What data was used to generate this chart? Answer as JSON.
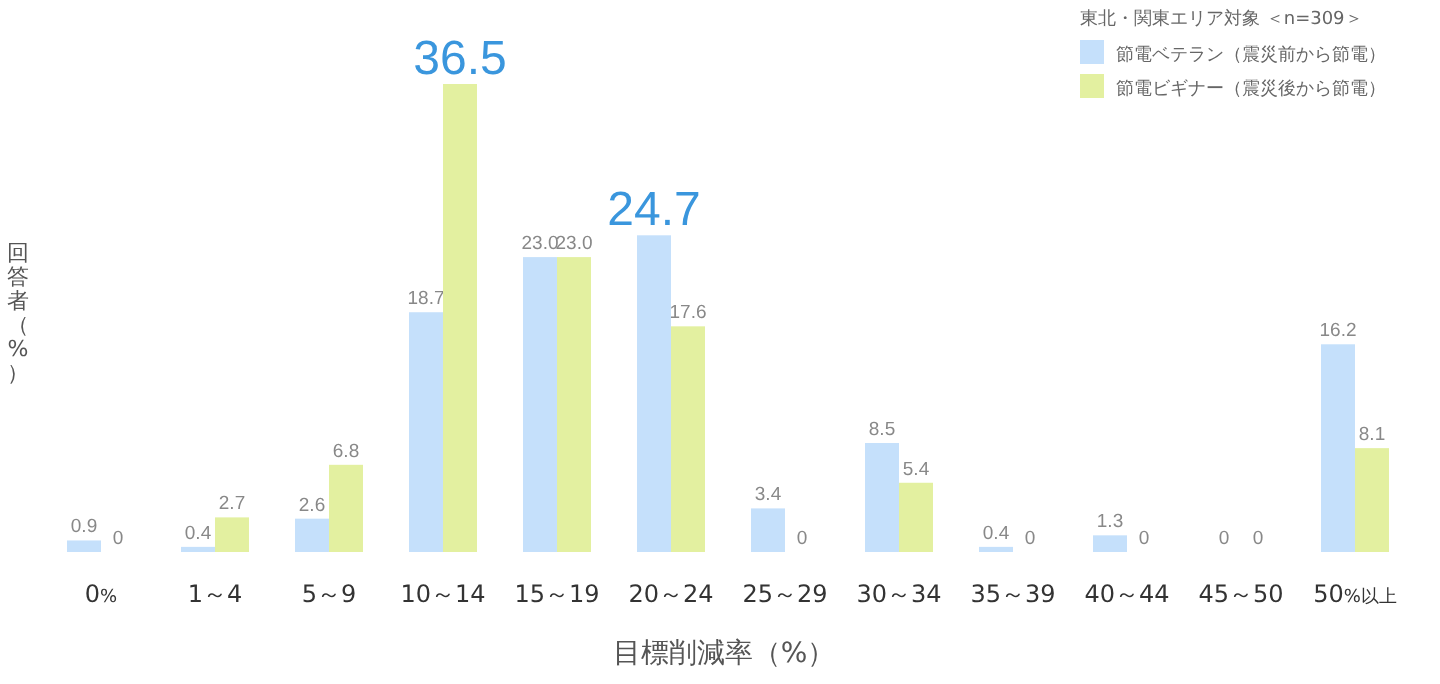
{
  "chart_data": {
    "type": "bar",
    "xlabel": "目標削減率（%）",
    "ylabel": "回答者（%）",
    "legend_title": "東北・関東エリア対象 ＜n=309＞",
    "legend": "top right",
    "categories": [
      "0%",
      "1～4",
      "5～9",
      "10～14",
      "15～19",
      "20～24",
      "25～29",
      "30～34",
      "35～39",
      "40～44",
      "45～50",
      "50%以上"
    ],
    "series": [
      {
        "name": "節電ベテラン（震災前から節電）",
        "color": "#c5e0fb",
        "values": [
          0.9,
          0.4,
          2.6,
          18.7,
          23.0,
          24.7,
          3.4,
          8.5,
          0.4,
          1.3,
          0,
          16.2
        ],
        "value_labels": [
          "0.9",
          "0.4",
          "2.6",
          "18.7",
          "23.0",
          "24.7",
          "3.4",
          "8.5",
          "0.4",
          "1.3",
          "0",
          "16.2"
        ]
      },
      {
        "name": "節電ビギナー（震災後から節電）",
        "color": "#e3f0a0",
        "values": [
          0,
          2.7,
          6.8,
          36.5,
          23.0,
          17.6,
          0,
          5.4,
          0,
          0,
          0,
          8.1
        ],
        "value_labels": [
          "0",
          "2.7",
          "6.8",
          "36.5",
          "23.0",
          "17.6",
          "0",
          "5.4",
          "0",
          "0",
          "0",
          "8.1"
        ]
      }
    ]
  }
}
